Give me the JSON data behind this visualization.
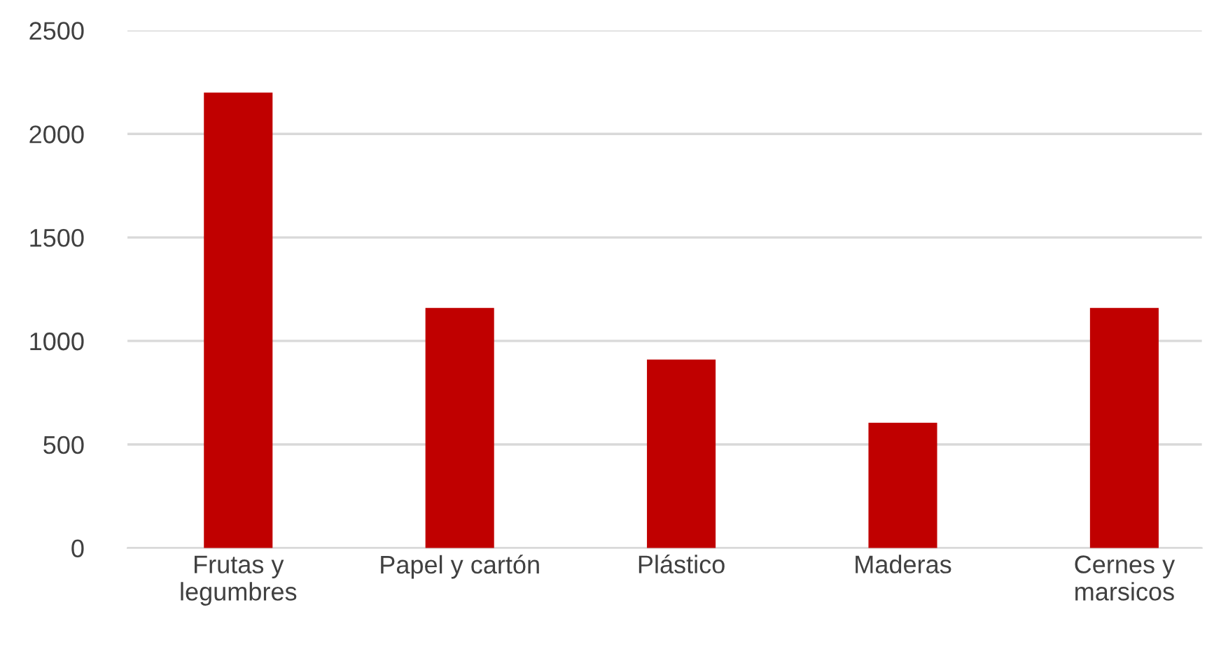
{
  "chart_data": {
    "type": "bar",
    "categories": [
      "Frutas y\nlegumbres",
      "Papel y cartón",
      "Plástico",
      "Maderas",
      "Cernes y\nmarsicos"
    ],
    "values": [
      2200,
      1160,
      910,
      605,
      1160
    ],
    "color": "#c00000",
    "ylim": [
      0,
      2500
    ],
    "yticks": [
      0,
      500,
      1000,
      1500,
      2000,
      2500
    ],
    "grid": "y"
  }
}
